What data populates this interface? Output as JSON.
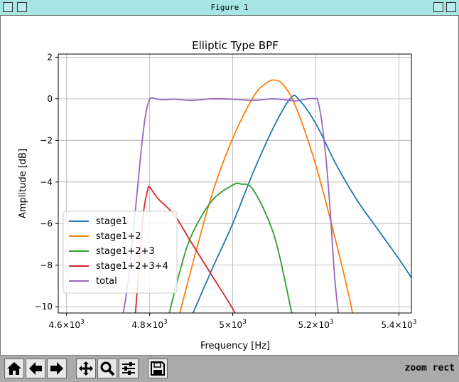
{
  "window": {
    "title": "Figure 1"
  },
  "toolbar": {
    "tools": [
      "home-icon",
      "back-icon",
      "forward-icon",
      "pan-icon",
      "zoom-icon",
      "configure-subplots-icon",
      "save-icon"
    ],
    "status": "zoom rect"
  },
  "chart_data": {
    "type": "line",
    "title": "Elliptic Type BPF",
    "xlabel": "Frequency [Hz]",
    "ylabel": "Amplitude [dB]",
    "xlim": [
      4580,
      5430
    ],
    "ylim": [
      -10.3,
      2.15
    ],
    "grid": true,
    "legend_position": "lower-left",
    "xticks": [
      {
        "value": 4600,
        "mant": "4.6",
        "exp": "3"
      },
      {
        "value": 4800,
        "mant": "4.8",
        "exp": "3"
      },
      {
        "value": 5000,
        "mant": "5",
        "exp": "3"
      },
      {
        "value": 5200,
        "mant": "5.2",
        "exp": "3"
      },
      {
        "value": 5400,
        "mant": "5.4",
        "exp": "3"
      }
    ],
    "xtick_prefix": "10",
    "yticks": [
      {
        "value": 2,
        "label": "2"
      },
      {
        "value": 0,
        "label": "0"
      },
      {
        "value": -2,
        "label": "−2"
      },
      {
        "value": -4,
        "label": "−4"
      },
      {
        "value": -6,
        "label": "−6"
      },
      {
        "value": -8,
        "label": "−8"
      },
      {
        "value": -10,
        "label": "−10"
      }
    ],
    "series": [
      {
        "name": "stage1",
        "color": "#1f77b4",
        "points": [
          [
            4900,
            -10.5
          ],
          [
            4950,
            -8.2
          ],
          [
            5000,
            -6.0
          ],
          [
            5050,
            -3.5
          ],
          [
            5100,
            -1.3
          ],
          [
            5140,
            0.05
          ],
          [
            5160,
            -0.05
          ],
          [
            5200,
            -1.2
          ],
          [
            5250,
            -3.2
          ],
          [
            5300,
            -4.9
          ],
          [
            5350,
            -6.3
          ],
          [
            5400,
            -7.7
          ],
          [
            5430,
            -8.6
          ]
        ]
      },
      {
        "name": "stage1+2",
        "color": "#ff7f0e",
        "points": [
          [
            4870,
            -10.5
          ],
          [
            4900,
            -8.2
          ],
          [
            4950,
            -4.6
          ],
          [
            5000,
            -1.9
          ],
          [
            5050,
            0.1
          ],
          [
            5080,
            0.75
          ],
          [
            5100,
            0.9
          ],
          [
            5120,
            0.7
          ],
          [
            5150,
            -0.3
          ],
          [
            5200,
            -3.2
          ],
          [
            5250,
            -7.0
          ],
          [
            5280,
            -9.5
          ],
          [
            5290,
            -10.5
          ]
        ]
      },
      {
        "name": "stage1+2+3",
        "color": "#2ca02c",
        "points": [
          [
            4845,
            -10.5
          ],
          [
            4870,
            -8.5
          ],
          [
            4900,
            -6.6
          ],
          [
            4950,
            -4.9
          ],
          [
            5000,
            -4.15
          ],
          [
            5020,
            -4.1
          ],
          [
            5050,
            -4.4
          ],
          [
            5100,
            -6.6
          ],
          [
            5140,
            -10.1
          ],
          [
            5145,
            -10.5
          ]
        ]
      },
      {
        "name": "stage1+2+3+4",
        "color": "#d62728",
        "points": [
          [
            4765,
            -10.5
          ],
          [
            4775,
            -8.0
          ],
          [
            4785,
            -5.5
          ],
          [
            4795,
            -4.4
          ],
          [
            4800,
            -4.25
          ],
          [
            4820,
            -4.8
          ],
          [
            4860,
            -5.6
          ],
          [
            4900,
            -6.9
          ],
          [
            4950,
            -8.5
          ],
          [
            5000,
            -10.1
          ],
          [
            5008,
            -10.5
          ]
        ]
      },
      {
        "name": "total",
        "color": "#9467bd",
        "points": [
          [
            4735,
            -10.5
          ],
          [
            4750,
            -8.5
          ],
          [
            4765,
            -5.5
          ],
          [
            4780,
            -2.4
          ],
          [
            4790,
            -0.8
          ],
          [
            4800,
            -0.02
          ],
          [
            4815,
            0.0
          ],
          [
            4830,
            -0.05
          ],
          [
            4860,
            -0.02
          ],
          [
            4900,
            -0.08
          ],
          [
            4950,
            0.0
          ],
          [
            5000,
            -0.02
          ],
          [
            5050,
            -0.08
          ],
          [
            5100,
            0.0
          ],
          [
            5150,
            -0.1
          ],
          [
            5180,
            0.0
          ],
          [
            5200,
            0.0
          ],
          [
            5205,
            -0.1
          ],
          [
            5215,
            -1.2
          ],
          [
            5225,
            -3.0
          ],
          [
            5235,
            -5.5
          ],
          [
            5245,
            -8.5
          ],
          [
            5255,
            -10.5
          ]
        ]
      }
    ]
  }
}
